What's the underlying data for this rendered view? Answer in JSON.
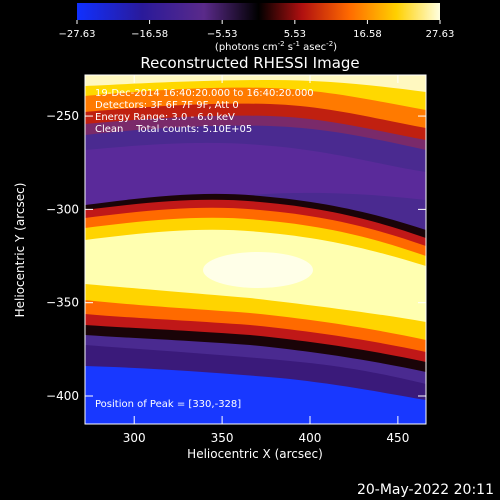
{
  "chart_data": {
    "type": "heatmap",
    "title": "Reconstructed RHESSI Image",
    "xlabel": "Heliocentric X (arcsec)",
    "ylabel": "Heliocentric Y (arcsec)",
    "xlim": [
      272,
      466
    ],
    "ylim": [
      -415,
      -228
    ],
    "x_ticks": [
      300,
      350,
      400,
      450
    ],
    "y_ticks": [
      -250,
      -300,
      -350,
      -400
    ],
    "colorbar": {
      "ticks": [
        "-27.63",
        "-16.58",
        "-5.53",
        "5.53",
        "16.58",
        "27.63"
      ],
      "min": -27.63,
      "max": 27.63,
      "units_label_base": "(photons cm",
      "units_exp1": "-2",
      "units_mid": " s",
      "units_exp2": "-1",
      "units_mid2": " asec",
      "units_exp3": "-2",
      "units_close": ")"
    },
    "annotations": [
      "19-Dec-2014 16:40:20.000 to 16:40:20.000",
      "Detectors: 3F 6F 7F 9F, Att 0",
      "Energy Range: 3.0 - 6.0 keV",
      "Clean    Total counts: 5.10E+05"
    ],
    "peak_label": "Position of Peak = [330,-328]",
    "peak": [
      330,
      -328
    ],
    "structure": {
      "bright_band_center": [
        [
          272,
          -322
        ],
        [
          320,
          -318
        ],
        [
          360,
          -315
        ],
        [
          400,
          -322
        ],
        [
          440,
          -335
        ],
        [
          466,
          -342
        ]
      ],
      "upper_band_center": [
        [
          272,
          -250
        ],
        [
          320,
          -248
        ],
        [
          370,
          -255
        ],
        [
          420,
          -266
        ],
        [
          466,
          -272
        ]
      ]
    }
  },
  "footer_date": "20-May-2022 20:11"
}
